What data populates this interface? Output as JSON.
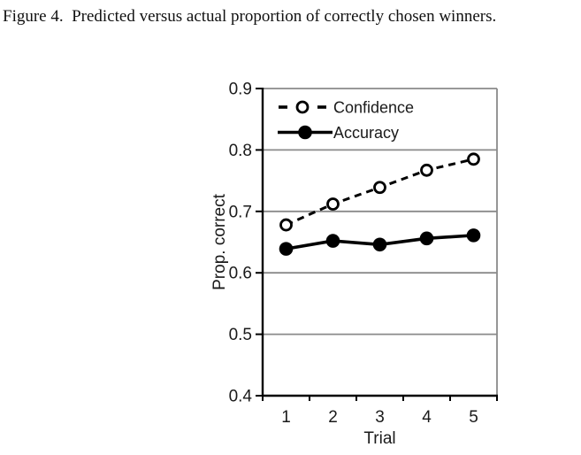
{
  "figure_caption": "Figure 4.  Predicted versus actual proportion of correctly chosen winners.",
  "chart_data": {
    "type": "line",
    "title": "",
    "xlabel": "Trial",
    "ylabel": "Prop. correct",
    "x_categories": [
      "1",
      "2",
      "3",
      "4",
      "5"
    ],
    "ylim": [
      0.4,
      0.9
    ],
    "yticks": [
      "0.9",
      "0.8",
      "0.7",
      "0.6",
      "0.5",
      "0.4"
    ],
    "grid": "horizontal",
    "legend_position": "top-left-inside",
    "series": [
      {
        "name": "Confidence",
        "values": [
          0.678,
          0.712,
          0.739,
          0.767,
          0.785
        ],
        "line_style": "dashed",
        "marker": "open-circle",
        "color": "#000000"
      },
      {
        "name": "Accuracy",
        "values": [
          0.639,
          0.652,
          0.646,
          0.656,
          0.661
        ],
        "line_style": "solid",
        "marker": "filled-circle",
        "color": "#000000"
      }
    ],
    "colors": {
      "axis": "#000000",
      "gridline": "#8a8a8a",
      "plot_border": "#8a8a8a",
      "background": "#ffffff",
      "open_marker_fill": "#ffffff"
    }
  }
}
